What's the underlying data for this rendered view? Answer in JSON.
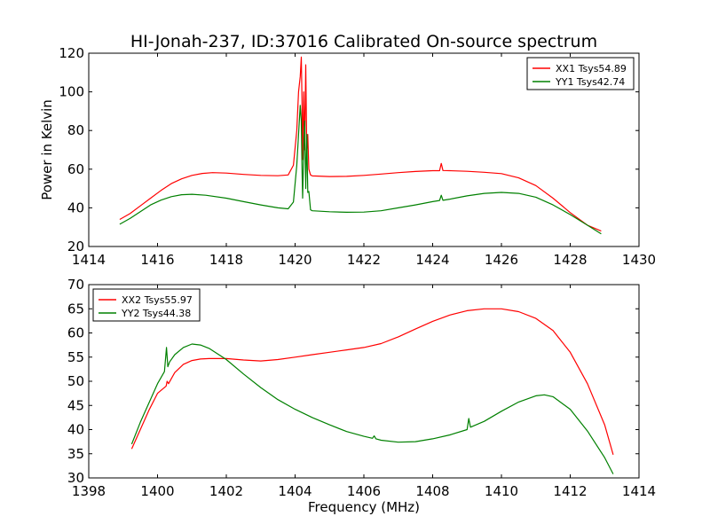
{
  "chart_data": [
    {
      "type": "line",
      "title": "HI-Jonah-237, ID:37016 Calibrated On-source spectrum",
      "xlabel": "",
      "ylabel": "Power in Kelvin",
      "xlim": [
        1414,
        1430
      ],
      "ylim": [
        20,
        120
      ],
      "xticks": [
        1414,
        1416,
        1418,
        1420,
        1422,
        1424,
        1426,
        1428,
        1430
      ],
      "yticks": [
        20,
        40,
        60,
        80,
        100,
        120
      ],
      "grid": false,
      "legend": "top-right",
      "series": [
        {
          "name": "XX1 Tsys54.89",
          "color": "#ff0000",
          "x": [
            1414.9,
            1415.2,
            1415.5,
            1415.8,
            1416.1,
            1416.4,
            1416.7,
            1417.0,
            1417.3,
            1417.6,
            1418.0,
            1418.5,
            1419.0,
            1419.5,
            1419.8,
            1419.95,
            1420.05,
            1420.1,
            1420.15,
            1420.18,
            1420.2,
            1420.22,
            1420.25,
            1420.28,
            1420.31,
            1420.34,
            1420.37,
            1420.4,
            1420.45,
            1420.5,
            1421.0,
            1421.5,
            1422.0,
            1422.5,
            1423.0,
            1423.5,
            1424.0,
            1424.2,
            1424.25,
            1424.3,
            1424.5,
            1425.0,
            1425.5,
            1426.0,
            1426.5,
            1427.0,
            1427.5,
            1428.0,
            1428.5,
            1428.9
          ],
          "y": [
            34,
            37,
            41,
            45,
            49,
            52.5,
            55,
            56.8,
            57.8,
            58.2,
            58,
            57.3,
            56.8,
            56.6,
            57,
            62,
            80,
            100,
            108,
            118,
            95,
            65,
            100,
            70,
            114,
            68,
            78,
            60,
            57,
            56.5,
            56.2,
            56.3,
            56.8,
            57.5,
            58.2,
            58.8,
            59.2,
            59.2,
            63,
            59.3,
            59.2,
            58.9,
            58.4,
            57.7,
            55.5,
            51.5,
            45,
            37.5,
            31,
            28
          ]
        },
        {
          "name": "YY1 Tsys42.74",
          "color": "#008000",
          "x": [
            1414.9,
            1415.2,
            1415.5,
            1415.8,
            1416.1,
            1416.4,
            1416.7,
            1417.0,
            1417.4,
            1418.0,
            1418.5,
            1419.0,
            1419.5,
            1419.8,
            1419.95,
            1420.05,
            1420.1,
            1420.15,
            1420.18,
            1420.2,
            1420.22,
            1420.25,
            1420.28,
            1420.31,
            1420.34,
            1420.37,
            1420.4,
            1420.45,
            1420.5,
            1421.0,
            1421.5,
            1422.0,
            1422.5,
            1423.0,
            1423.5,
            1424.0,
            1424.2,
            1424.25,
            1424.3,
            1424.5,
            1425.0,
            1425.5,
            1426.0,
            1426.5,
            1427.0,
            1427.5,
            1428.0,
            1428.5,
            1428.9
          ],
          "y": [
            31.5,
            34.5,
            38,
            41.5,
            44,
            45.8,
            46.8,
            47,
            46.5,
            45,
            43.2,
            41.5,
            40,
            39.5,
            43,
            62,
            78,
            93,
            85,
            60,
            45,
            70,
            85,
            50,
            78,
            48,
            48.5,
            39,
            38.5,
            38,
            37.7,
            37.8,
            38.5,
            40,
            41.5,
            43.2,
            43.8,
            46.5,
            43.9,
            44.5,
            46.2,
            47.5,
            48,
            47.5,
            45.5,
            41.5,
            36.5,
            31,
            26.5
          ]
        }
      ]
    },
    {
      "type": "line",
      "title": "",
      "xlabel": "Frequency (MHz)",
      "ylabel": "",
      "xlim": [
        1398,
        1414
      ],
      "ylim": [
        30,
        70
      ],
      "xticks": [
        1398,
        1400,
        1402,
        1404,
        1406,
        1408,
        1410,
        1412,
        1414
      ],
      "yticks": [
        30,
        35,
        40,
        45,
        50,
        55,
        60,
        65,
        70
      ],
      "grid": false,
      "legend": "top-left",
      "series": [
        {
          "name": "XX2 Tsys55.97",
          "color": "#ff0000",
          "x": [
            1399.25,
            1399.5,
            1399.75,
            1400.0,
            1400.25,
            1400.28,
            1400.32,
            1400.5,
            1400.75,
            1401.0,
            1401.25,
            1401.5,
            1402.0,
            1402.5,
            1403.0,
            1403.5,
            1404.0,
            1404.5,
            1405.0,
            1405.5,
            1406.0,
            1406.5,
            1407.0,
            1407.5,
            1408.0,
            1408.5,
            1409.0,
            1409.5,
            1410.0,
            1410.5,
            1411.0,
            1411.5,
            1412.0,
            1412.5,
            1413.0,
            1413.25
          ],
          "y": [
            36,
            40,
            44,
            47.5,
            49,
            50,
            49.5,
            51.8,
            53.5,
            54.3,
            54.6,
            54.7,
            54.7,
            54.4,
            54.2,
            54.5,
            55,
            55.5,
            56,
            56.5,
            57,
            57.8,
            59.2,
            60.8,
            62.4,
            63.7,
            64.6,
            65,
            65,
            64.4,
            63,
            60.5,
            56,
            49.5,
            41,
            34.8
          ]
        },
        {
          "name": "YY2 Tsys44.38",
          "color": "#008000",
          "x": [
            1399.25,
            1399.5,
            1399.75,
            1400.0,
            1400.2,
            1400.26,
            1400.3,
            1400.35,
            1400.5,
            1400.75,
            1401.0,
            1401.25,
            1401.5,
            1402.0,
            1402.5,
            1403.0,
            1403.5,
            1404.0,
            1404.5,
            1405.0,
            1405.5,
            1406.0,
            1406.25,
            1406.3,
            1406.35,
            1406.5,
            1407.0,
            1407.5,
            1408.0,
            1408.5,
            1409.0,
            1409.05,
            1409.1,
            1409.5,
            1410.0,
            1410.5,
            1411.0,
            1411.25,
            1411.5,
            1412.0,
            1412.5,
            1413.0,
            1413.25
          ],
          "y": [
            37,
            41.5,
            45.5,
            49.5,
            52,
            57,
            53,
            54,
            55.5,
            57,
            57.7,
            57.5,
            56.8,
            54.5,
            51.5,
            48.7,
            46.2,
            44.2,
            42.5,
            41,
            39.6,
            38.6,
            38.2,
            38.7,
            38.1,
            37.8,
            37.4,
            37.5,
            38.1,
            38.9,
            40,
            42.3,
            40.5,
            41.7,
            43.8,
            45.7,
            47,
            47.2,
            46.8,
            44.2,
            39.7,
            34.2,
            30.8
          ]
        }
      ]
    }
  ]
}
